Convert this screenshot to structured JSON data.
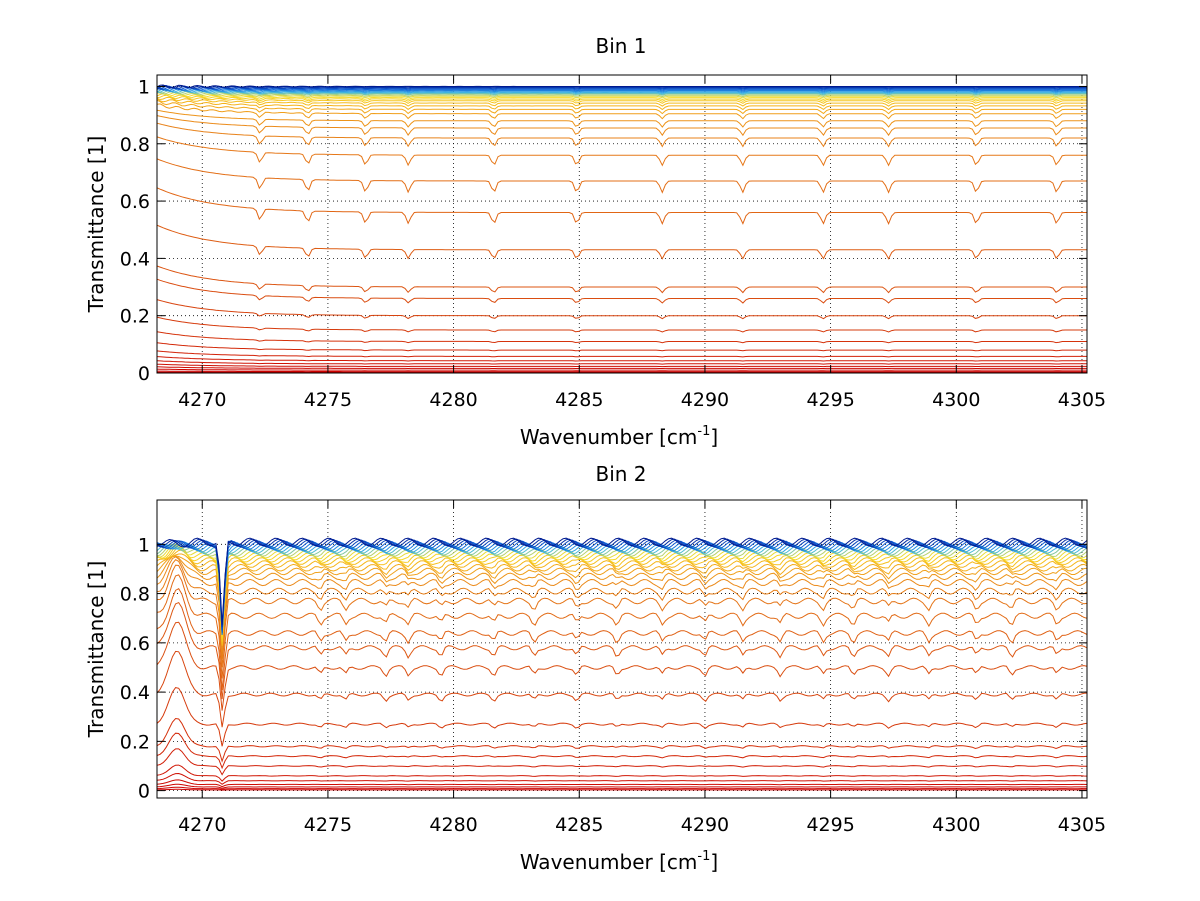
{
  "figure": {
    "background": "#ffffff"
  },
  "chart_data": [
    {
      "type": "line",
      "title": "Bin 1",
      "xlabel": "Wavenumber [cm",
      "xlabel_sup": "-1",
      "xlabel_end": "]",
      "ylabel": "Transmittance [1]",
      "xlim": [
        4268.2,
        4305.2
      ],
      "ylim": [
        0,
        1.04
      ],
      "xticks": [
        4270,
        4275,
        4280,
        4285,
        4290,
        4295,
        4300,
        4305
      ],
      "xtick_labels": [
        "4270",
        "4275",
        "4280",
        "4285",
        "4290",
        "4295",
        "4300",
        "4305"
      ],
      "yticks": [
        0,
        0.2,
        0.4,
        0.6,
        0.8,
        1
      ],
      "ytick_labels": [
        "0",
        "0.2",
        "0.4",
        "0.6",
        "0.8",
        "1"
      ],
      "grid": "dotted",
      "series_count": 60,
      "series_description": "spectral transmittance curves, colored from red (low) through orange and yellow to blue (high)",
      "series_colors": [
        "#cc0000",
        "#d94a10",
        "#e8801a",
        "#f5b21a",
        "#f7df2a",
        "#3bb8e8",
        "#1060d8",
        "#001a90"
      ],
      "series_plateau_values": [
        0.002,
        0.005,
        0.01,
        0.016,
        0.023,
        0.032,
        0.043,
        0.058,
        0.08,
        0.11,
        0.15,
        0.2,
        0.26,
        0.3,
        0.43,
        0.56,
        0.67,
        0.76,
        0.82,
        0.855,
        0.88,
        0.905,
        0.92,
        0.932,
        0.942,
        0.95,
        0.956,
        0.961,
        0.966,
        0.97,
        0.974,
        0.977,
        0.98,
        0.983,
        0.986,
        0.989,
        0.992,
        0.995,
        0.998,
        1.0
      ],
      "absorption_lines_cm-1": [
        4272.3,
        4274.2,
        4276.5,
        4278.2,
        4281.6,
        4284.9,
        4288.3,
        4291.5,
        4294.7,
        4297.3,
        4300.8,
        4304.0
      ]
    },
    {
      "type": "line",
      "title": "Bin 2",
      "xlabel": "Wavenumber [cm",
      "xlabel_sup": "-1",
      "xlabel_end": "]",
      "ylabel": "Transmittance [1]",
      "xlim": [
        4268.2,
        4305.2
      ],
      "ylim": [
        -0.03,
        1.18
      ],
      "xticks": [
        4270,
        4275,
        4280,
        4285,
        4290,
        4295,
        4300,
        4305
      ],
      "xtick_labels": [
        "4270",
        "4275",
        "4280",
        "4285",
        "4290",
        "4295",
        "4300",
        "4305"
      ],
      "yticks": [
        0,
        0.2,
        0.4,
        0.6,
        0.8,
        1
      ],
      "ytick_labels": [
        "0",
        "0.2",
        "0.4",
        "0.6",
        "0.8",
        "1"
      ],
      "grid": "dotted",
      "series_count": 60,
      "series_description": "spectral transmittance curves with a peak near 4269 and a dip near 4270.8, colored from red (low) through orange and yellow to blue (high)",
      "series_colors": [
        "#cc0000",
        "#d94a10",
        "#e8801a",
        "#f5b21a",
        "#f7df2a",
        "#3bb8e8",
        "#1060d8",
        "#001a90"
      ],
      "series_plateau_values": [
        0.003,
        0.008,
        0.015,
        0.025,
        0.04,
        0.06,
        0.1,
        0.14,
        0.18,
        0.27,
        0.39,
        0.5,
        0.58,
        0.64,
        0.71,
        0.77,
        0.81,
        0.845,
        0.87,
        0.89,
        0.905,
        0.92,
        0.932,
        0.942,
        0.951,
        0.959,
        0.966,
        0.972,
        0.978,
        0.983,
        0.988,
        0.993,
        0.998,
        1.002,
        1.006,
        1.01
      ],
      "absorption_lines_cm-1": [
        4274.7,
        4275.7,
        4277.3,
        4278.2,
        4279.5,
        4281.6,
        4283.2,
        4284.9,
        4286.5,
        4288.3,
        4290.0,
        4291.5,
        4293.0,
        4294.7,
        4295.9,
        4297.3,
        4298.9,
        4300.8,
        4302.2,
        4304.0
      ]
    }
  ]
}
